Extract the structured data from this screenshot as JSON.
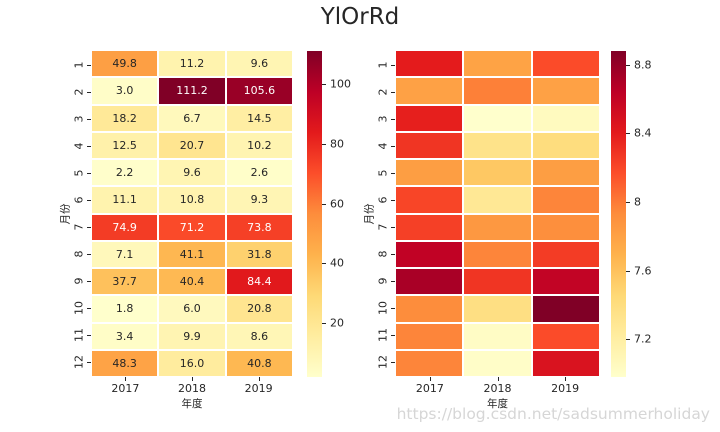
{
  "title": "YlOrRd",
  "watermark": "https://blog.csdn.net/sadsummerholiday",
  "colors": {
    "annot_dark": "#262626",
    "annot_light": "#ffffff",
    "tick": "#262626",
    "background": "#ffffff",
    "watermark": "#d6d6d6",
    "colormap_anchors": [
      "#ffffcc",
      "#ffeda0",
      "#fed976",
      "#feb24c",
      "#fd8d3c",
      "#fc4e2a",
      "#e31a1c",
      "#bd0026",
      "#800026"
    ]
  },
  "chart_data": [
    {
      "type": "heatmap",
      "name": "annotated-heatmap",
      "colormap": "YlOrRd",
      "annotated": true,
      "xlabel": "年度",
      "ylabel": "月份",
      "x_ticklabels": [
        "2017",
        "2018",
        "2019"
      ],
      "y_ticklabels": [
        "1",
        "2",
        "3",
        "4",
        "5",
        "6",
        "7",
        "8",
        "9",
        "10",
        "11",
        "12"
      ],
      "values": [
        [
          49.8,
          11.2,
          9.6
        ],
        [
          3.0,
          111.2,
          105.6
        ],
        [
          18.2,
          6.7,
          14.5
        ],
        [
          12.5,
          20.7,
          10.2
        ],
        [
          2.2,
          9.6,
          2.6
        ],
        [
          11.1,
          10.8,
          9.3
        ],
        [
          74.9,
          71.2,
          73.8
        ],
        [
          7.1,
          41.1,
          31.8
        ],
        [
          37.7,
          40.4,
          84.4
        ],
        [
          1.8,
          6.0,
          20.8
        ],
        [
          3.4,
          9.9,
          8.6
        ],
        [
          48.3,
          16.0,
          40.8
        ]
      ],
      "vmin": 1.8,
      "vmax": 111.2,
      "colorbar_ticks": [
        20,
        40,
        60,
        80,
        100
      ],
      "legend_position": "right-colorbar",
      "grid": false
    },
    {
      "type": "heatmap",
      "name": "plain-heatmap",
      "colormap": "YlOrRd",
      "annotated": false,
      "xlabel": "年度",
      "ylabel": "月份",
      "x_ticklabels": [
        "2017",
        "2018",
        "2019"
      ],
      "y_ticklabels": [
        "1",
        "2",
        "3",
        "4",
        "5",
        "6",
        "7",
        "8",
        "9",
        "10",
        "11",
        "12"
      ],
      "values": [
        [
          8.4,
          7.79,
          8.18
        ],
        [
          7.8,
          7.98,
          7.8
        ],
        [
          8.38,
          6.98,
          7.05
        ],
        [
          8.28,
          7.34,
          7.41
        ],
        [
          7.82,
          7.56,
          7.82
        ],
        [
          8.21,
          7.28,
          7.96
        ],
        [
          8.23,
          7.86,
          7.92
        ],
        [
          8.62,
          7.96,
          8.25
        ],
        [
          8.72,
          8.28,
          8.61
        ],
        [
          7.93,
          7.38,
          8.88
        ],
        [
          7.96,
          7.02,
          8.18
        ],
        [
          7.96,
          7.0,
          8.47
        ]
      ],
      "vmin": 6.98,
      "vmax": 8.88,
      "colorbar_ticks": [
        7.2,
        7.6,
        8.0,
        8.4,
        8.8
      ],
      "legend_position": "right-colorbar",
      "grid": false
    }
  ]
}
